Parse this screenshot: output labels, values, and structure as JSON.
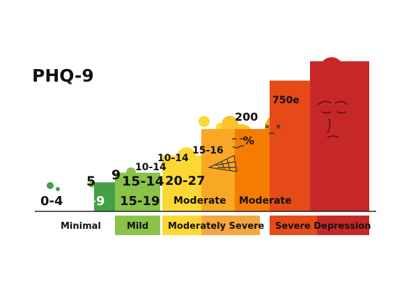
{
  "chart_data": {
    "type": "bar",
    "title": "PHQ-9",
    "categories": [
      "0-4",
      "5-9",
      "15-19",
      "20-27",
      "Moderate",
      "Moderate",
      "",
      ""
    ],
    "values": [
      0,
      1.2,
      1.6,
      2.3,
      3.4,
      3.4,
      5.4,
      6.2
    ],
    "ylim": [
      0,
      7
    ],
    "bar_colors": [
      "#ffffff",
      "#43a047",
      "#8bc34a",
      "#fdd835",
      "#f9a825",
      "#f57c00",
      "#e64a19",
      "#c62828"
    ],
    "range_labels": [
      "5",
      "9",
      "15-14",
      "10-14",
      "10-14",
      "15-16",
      "200",
      "750e"
    ],
    "stray_labels": [
      "%"
    ],
    "bands": [
      {
        "label": "Minimal",
        "color": "#ffffff"
      },
      {
        "label": "Mild",
        "color": "#8bc34a"
      },
      {
        "label": "Moderately Severe",
        "color": "#fdd835"
      },
      {
        "label": "",
        "color": "#f4a640"
      },
      {
        "label": "Severe Depression",
        "color": "#e64a19"
      },
      {
        "label": "",
        "color": "#c62828"
      }
    ]
  }
}
